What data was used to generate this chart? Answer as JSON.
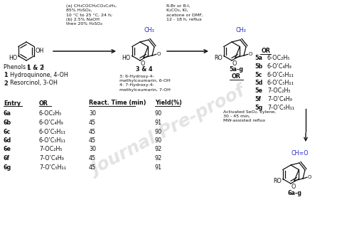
{
  "bg_color": "#ffffff",
  "reagent1": "(a) CH₃COCH₂CO₂C₂H₅,\n85% H₂SO₄,\n10 °C to 25 °C, 24 h;\n(b) 2.5% NaOH\nthen 20% H₂SO₄",
  "reagent2": "R-Br or R-I,\nK₂CO₃, KI,\nacetone or DMF,\n12 - 18 h, reflux",
  "reagent3": "Activated SeO₂, xylene,\n30 - 45 min,\nMW-assisted reflux",
  "label_34": "3 & 4",
  "label_5ag": "5a-g",
  "label_6ag": "6a-g",
  "desc_34": "3: 6-Hydroxy-4-\nmethylcoumarin, 6-OH\n4: 7-Hydroxy-4-\nmethylcoumarin, 7-OH",
  "phenol_hdr": "Phenols (",
  "phenol_hdr_bold": "1 & 2",
  "phenol_hdr_end": ")",
  "phenol1_bold": "1",
  "phenol1_rest": ": Hydroquinone, 4-OH",
  "phenol2_bold": "2",
  "phenol2_rest": ": Resorcinol, 3-OH",
  "or_header": "OR",
  "or_list": [
    [
      "5a",
      "6-OC₂H₅"
    ],
    [
      "5b",
      "6-OʹC₄H₉"
    ],
    [
      "5c",
      "6-OʹC₅H₁₁"
    ],
    [
      "5d",
      "6-OʹC₅H₁₁"
    ],
    [
      "5e",
      "7-OC₂H₅"
    ],
    [
      "5f",
      "7-OʹC₄H₉"
    ],
    [
      "5g",
      "7-OʹC₅H₁₁"
    ]
  ],
  "tbl_headers": [
    "Entry",
    "OR",
    "React. Time (min)",
    "Yield(%)"
  ],
  "tbl_rows": [
    [
      "6a",
      "6-OC₂H₅",
      "30",
      "90"
    ],
    [
      "6b",
      "6-OʹC₄H₉",
      "45",
      "91"
    ],
    [
      "6c",
      "6-OʹC₅H₁₁",
      "45",
      "90"
    ],
    [
      "6d",
      "6-OʹC₅H₁₁",
      "45",
      "90"
    ],
    [
      "6e",
      "7-OC₂H₅",
      "30",
      "92"
    ],
    [
      "6f",
      "7-OʹC₄H₉",
      "45",
      "92"
    ],
    [
      "6g",
      "7-OʹC₅H₁₁",
      "45",
      "91"
    ]
  ],
  "watermark": "Journal Pre-proof",
  "blue": "#2222cc",
  "black": "#111111"
}
